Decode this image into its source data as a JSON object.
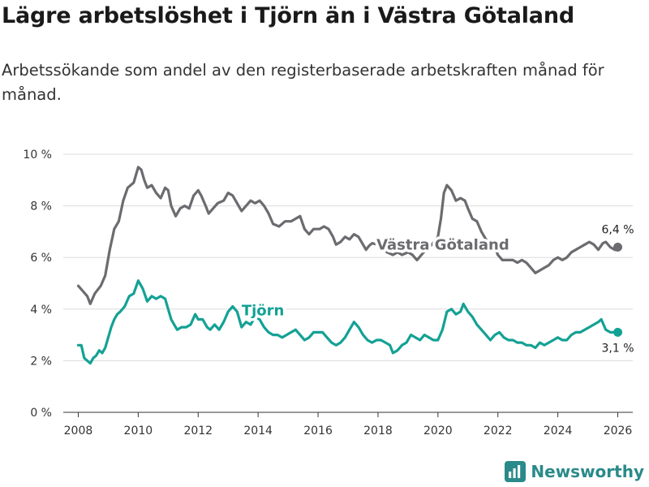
{
  "title": "Lägre arbetslöshet i Tjörn än i Västra Götaland",
  "subtitle": "Arbetssökande som andel av den registerbaserade arbetskraften månad för månad.",
  "brand": "Newsworthy",
  "chart_data": {
    "type": "line",
    "ylim": [
      0,
      10
    ],
    "xlim": [
      2007.5,
      2026.5
    ],
    "y_ticks": [
      0,
      2,
      4,
      6,
      8,
      10
    ],
    "y_tick_labels": [
      "0 %",
      "2 %",
      "4 %",
      "6 %",
      "8 %",
      "10 %"
    ],
    "x_ticks": [
      2008,
      2010,
      2012,
      2014,
      2016,
      2018,
      2020,
      2022,
      2024,
      2026
    ],
    "x_tick_labels": [
      "2008",
      "2010",
      "2012",
      "2014",
      "2016",
      "2018",
      "2020",
      "2022",
      "2024",
      "2026"
    ],
    "grid": "horizontal",
    "series": [
      {
        "name": "Västra Götaland",
        "color": "#6b6b70",
        "end_label": "6,4 %",
        "points": [
          [
            2008.0,
            4.9
          ],
          [
            2008.15,
            4.7
          ],
          [
            2008.3,
            4.5
          ],
          [
            2008.4,
            4.2
          ],
          [
            2008.55,
            4.6
          ],
          [
            2008.75,
            4.9
          ],
          [
            2008.9,
            5.3
          ],
          [
            2009.05,
            6.3
          ],
          [
            2009.2,
            7.1
          ],
          [
            2009.35,
            7.4
          ],
          [
            2009.5,
            8.2
          ],
          [
            2009.65,
            8.7
          ],
          [
            2009.85,
            8.9
          ],
          [
            2010.0,
            9.5
          ],
          [
            2010.1,
            9.4
          ],
          [
            2010.2,
            9.0
          ],
          [
            2010.3,
            8.7
          ],
          [
            2010.45,
            8.8
          ],
          [
            2010.6,
            8.5
          ],
          [
            2010.75,
            8.3
          ],
          [
            2010.9,
            8.7
          ],
          [
            2011.0,
            8.6
          ],
          [
            2011.1,
            8.0
          ],
          [
            2011.25,
            7.6
          ],
          [
            2011.4,
            7.9
          ],
          [
            2011.55,
            8.0
          ],
          [
            2011.7,
            7.9
          ],
          [
            2011.85,
            8.4
          ],
          [
            2012.0,
            8.6
          ],
          [
            2012.1,
            8.4
          ],
          [
            2012.25,
            8.0
          ],
          [
            2012.35,
            7.7
          ],
          [
            2012.5,
            7.9
          ],
          [
            2012.65,
            8.1
          ],
          [
            2012.85,
            8.2
          ],
          [
            2013.0,
            8.5
          ],
          [
            2013.15,
            8.4
          ],
          [
            2013.3,
            8.1
          ],
          [
            2013.45,
            7.8
          ],
          [
            2013.6,
            8.0
          ],
          [
            2013.75,
            8.2
          ],
          [
            2013.9,
            8.1
          ],
          [
            2014.05,
            8.2
          ],
          [
            2014.2,
            8.0
          ],
          [
            2014.35,
            7.7
          ],
          [
            2014.5,
            7.3
          ],
          [
            2014.7,
            7.2
          ],
          [
            2014.9,
            7.4
          ],
          [
            2015.1,
            7.4
          ],
          [
            2015.25,
            7.5
          ],
          [
            2015.4,
            7.6
          ],
          [
            2015.55,
            7.1
          ],
          [
            2015.7,
            6.9
          ],
          [
            2015.85,
            7.1
          ],
          [
            2016.05,
            7.1
          ],
          [
            2016.2,
            7.2
          ],
          [
            2016.35,
            7.1
          ],
          [
            2016.5,
            6.8
          ],
          [
            2016.6,
            6.5
          ],
          [
            2016.75,
            6.6
          ],
          [
            2016.9,
            6.8
          ],
          [
            2017.05,
            6.7
          ],
          [
            2017.2,
            6.9
          ],
          [
            2017.35,
            6.8
          ],
          [
            2017.5,
            6.5
          ],
          [
            2017.6,
            6.3
          ],
          [
            2017.7,
            6.45
          ],
          [
            2017.8,
            6.55
          ],
          [
            2018.0,
            6.5
          ],
          [
            2018.15,
            6.4
          ],
          [
            2018.3,
            6.2
          ],
          [
            2018.5,
            6.1
          ],
          [
            2018.65,
            6.2
          ],
          [
            2018.8,
            6.1
          ],
          [
            2019.0,
            6.2
          ],
          [
            2019.15,
            6.1
          ],
          [
            2019.3,
            5.9
          ],
          [
            2019.45,
            6.1
          ],
          [
            2019.6,
            6.3
          ],
          [
            2019.8,
            6.5
          ],
          [
            2020.0,
            6.8
          ],
          [
            2020.1,
            7.5
          ],
          [
            2020.2,
            8.5
          ],
          [
            2020.3,
            8.8
          ],
          [
            2020.45,
            8.6
          ],
          [
            2020.6,
            8.2
          ],
          [
            2020.75,
            8.3
          ],
          [
            2020.9,
            8.2
          ],
          [
            2021.0,
            7.9
          ],
          [
            2021.15,
            7.5
          ],
          [
            2021.3,
            7.4
          ],
          [
            2021.45,
            7.0
          ],
          [
            2021.6,
            6.7
          ],
          [
            2021.75,
            6.5
          ],
          [
            2021.9,
            6.4
          ],
          [
            2022.0,
            6.1
          ],
          [
            2022.15,
            5.9
          ],
          [
            2022.3,
            5.9
          ],
          [
            2022.5,
            5.9
          ],
          [
            2022.65,
            5.8
          ],
          [
            2022.8,
            5.9
          ],
          [
            2022.95,
            5.8
          ],
          [
            2023.1,
            5.6
          ],
          [
            2023.25,
            5.4
          ],
          [
            2023.4,
            5.5
          ],
          [
            2023.55,
            5.6
          ],
          [
            2023.7,
            5.7
          ],
          [
            2023.85,
            5.9
          ],
          [
            2024.0,
            6.0
          ],
          [
            2024.15,
            5.9
          ],
          [
            2024.3,
            6.0
          ],
          [
            2024.45,
            6.2
          ],
          [
            2024.6,
            6.3
          ],
          [
            2024.75,
            6.4
          ],
          [
            2024.9,
            6.5
          ],
          [
            2025.05,
            6.6
          ],
          [
            2025.2,
            6.5
          ],
          [
            2025.35,
            6.3
          ],
          [
            2025.5,
            6.55
          ],
          [
            2025.6,
            6.6
          ],
          [
            2025.75,
            6.4
          ],
          [
            2025.9,
            6.3
          ],
          [
            2026.0,
            6.4
          ]
        ]
      },
      {
        "name": "Tjörn",
        "color": "#14a195",
        "end_label": "3,1 %",
        "points": [
          [
            2008.0,
            2.6
          ],
          [
            2008.1,
            2.6
          ],
          [
            2008.2,
            2.1
          ],
          [
            2008.3,
            2.0
          ],
          [
            2008.4,
            1.9
          ],
          [
            2008.5,
            2.1
          ],
          [
            2008.6,
            2.2
          ],
          [
            2008.7,
            2.4
          ],
          [
            2008.8,
            2.3
          ],
          [
            2008.9,
            2.5
          ],
          [
            2009.0,
            2.9
          ],
          [
            2009.1,
            3.3
          ],
          [
            2009.2,
            3.6
          ],
          [
            2009.3,
            3.8
          ],
          [
            2009.4,
            3.9
          ],
          [
            2009.55,
            4.1
          ],
          [
            2009.7,
            4.5
          ],
          [
            2009.85,
            4.6
          ],
          [
            2010.0,
            5.1
          ],
          [
            2010.15,
            4.8
          ],
          [
            2010.3,
            4.3
          ],
          [
            2010.45,
            4.5
          ],
          [
            2010.6,
            4.4
          ],
          [
            2010.75,
            4.5
          ],
          [
            2010.9,
            4.4
          ],
          [
            2011.0,
            4.0
          ],
          [
            2011.1,
            3.6
          ],
          [
            2011.2,
            3.4
          ],
          [
            2011.3,
            3.2
          ],
          [
            2011.45,
            3.3
          ],
          [
            2011.6,
            3.3
          ],
          [
            2011.75,
            3.4
          ],
          [
            2011.9,
            3.8
          ],
          [
            2012.0,
            3.6
          ],
          [
            2012.15,
            3.6
          ],
          [
            2012.3,
            3.3
          ],
          [
            2012.4,
            3.2
          ],
          [
            2012.55,
            3.4
          ],
          [
            2012.7,
            3.2
          ],
          [
            2012.85,
            3.5
          ],
          [
            2013.0,
            3.9
          ],
          [
            2013.15,
            4.1
          ],
          [
            2013.3,
            3.9
          ],
          [
            2013.45,
            3.3
          ],
          [
            2013.6,
            3.5
          ],
          [
            2013.75,
            3.4
          ],
          [
            2013.9,
            3.7
          ],
          [
            2014.05,
            3.6
          ],
          [
            2014.2,
            3.3
          ],
          [
            2014.35,
            3.1
          ],
          [
            2014.5,
            3.0
          ],
          [
            2014.65,
            3.0
          ],
          [
            2014.8,
            2.9
          ],
          [
            2014.95,
            3.0
          ],
          [
            2015.1,
            3.1
          ],
          [
            2015.25,
            3.2
          ],
          [
            2015.4,
            3.0
          ],
          [
            2015.55,
            2.8
          ],
          [
            2015.7,
            2.9
          ],
          [
            2015.85,
            3.1
          ],
          [
            2016.0,
            3.1
          ],
          [
            2016.15,
            3.1
          ],
          [
            2016.3,
            2.9
          ],
          [
            2016.45,
            2.7
          ],
          [
            2016.6,
            2.6
          ],
          [
            2016.75,
            2.7
          ],
          [
            2016.9,
            2.9
          ],
          [
            2017.05,
            3.2
          ],
          [
            2017.2,
            3.5
          ],
          [
            2017.35,
            3.3
          ],
          [
            2017.5,
            3.0
          ],
          [
            2017.65,
            2.8
          ],
          [
            2017.8,
            2.7
          ],
          [
            2017.95,
            2.8
          ],
          [
            2018.1,
            2.8
          ],
          [
            2018.25,
            2.7
          ],
          [
            2018.4,
            2.6
          ],
          [
            2018.5,
            2.3
          ],
          [
            2018.65,
            2.4
          ],
          [
            2018.8,
            2.6
          ],
          [
            2018.95,
            2.7
          ],
          [
            2019.1,
            3.0
          ],
          [
            2019.25,
            2.9
          ],
          [
            2019.4,
            2.8
          ],
          [
            2019.55,
            3.0
          ],
          [
            2019.7,
            2.9
          ],
          [
            2019.85,
            2.8
          ],
          [
            2020.0,
            2.8
          ],
          [
            2020.15,
            3.2
          ],
          [
            2020.3,
            3.9
          ],
          [
            2020.45,
            4.0
          ],
          [
            2020.6,
            3.8
          ],
          [
            2020.75,
            3.9
          ],
          [
            2020.85,
            4.2
          ],
          [
            2021.0,
            3.9
          ],
          [
            2021.15,
            3.7
          ],
          [
            2021.3,
            3.4
          ],
          [
            2021.45,
            3.2
          ],
          [
            2021.6,
            3.0
          ],
          [
            2021.75,
            2.8
          ],
          [
            2021.9,
            3.0
          ],
          [
            2022.05,
            3.1
          ],
          [
            2022.2,
            2.9
          ],
          [
            2022.35,
            2.8
          ],
          [
            2022.5,
            2.8
          ],
          [
            2022.65,
            2.7
          ],
          [
            2022.8,
            2.7
          ],
          [
            2022.95,
            2.6
          ],
          [
            2023.1,
            2.6
          ],
          [
            2023.25,
            2.5
          ],
          [
            2023.4,
            2.7
          ],
          [
            2023.55,
            2.6
          ],
          [
            2023.7,
            2.7
          ],
          [
            2023.85,
            2.8
          ],
          [
            2024.0,
            2.9
          ],
          [
            2024.15,
            2.8
          ],
          [
            2024.3,
            2.8
          ],
          [
            2024.45,
            3.0
          ],
          [
            2024.6,
            3.1
          ],
          [
            2024.75,
            3.1
          ],
          [
            2024.9,
            3.2
          ],
          [
            2025.05,
            3.3
          ],
          [
            2025.2,
            3.4
          ],
          [
            2025.35,
            3.5
          ],
          [
            2025.45,
            3.6
          ],
          [
            2025.6,
            3.2
          ],
          [
            2025.75,
            3.1
          ],
          [
            2025.9,
            3.1
          ],
          [
            2026.0,
            3.1
          ]
        ]
      }
    ]
  }
}
